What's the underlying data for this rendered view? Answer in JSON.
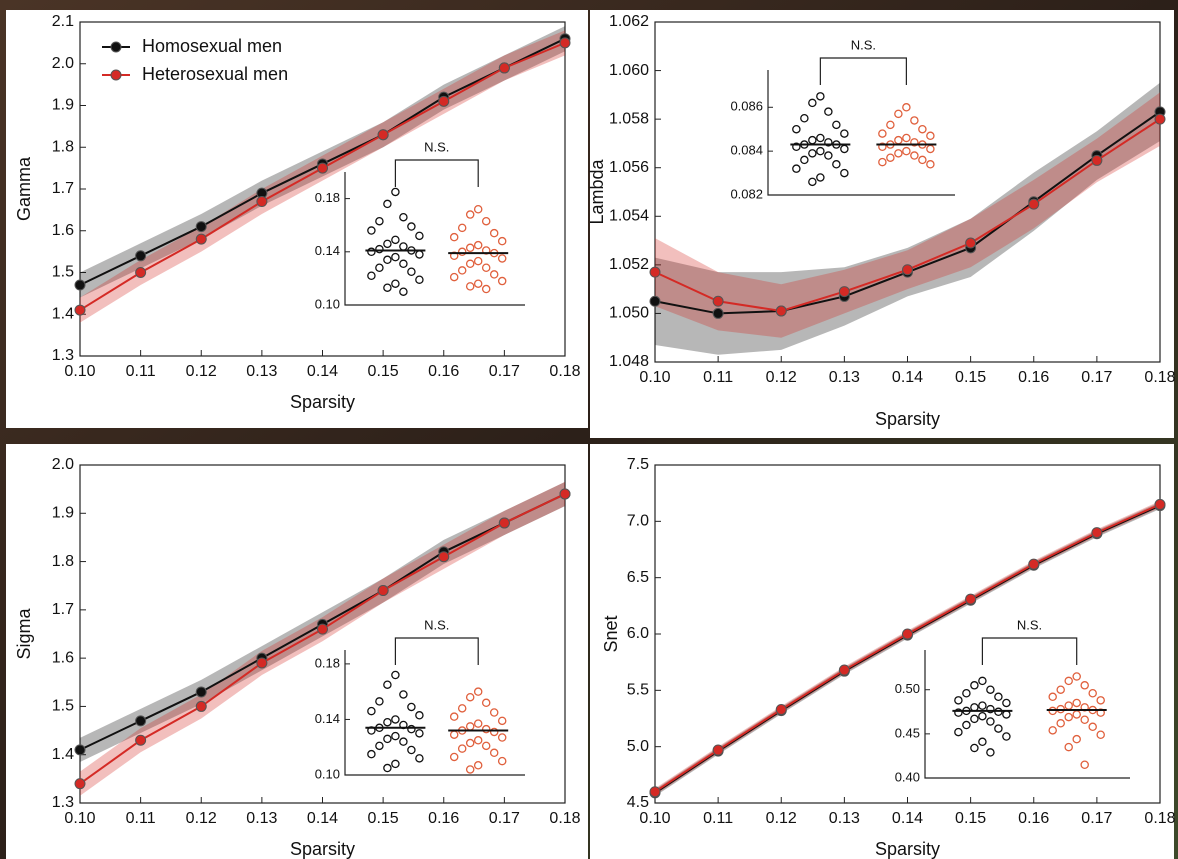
{
  "chart_data": [
    {
      "type": "line",
      "xlabel": "Sparsity",
      "ylabel": "Gamma",
      "legend": "upper left",
      "x": [
        0.1,
        0.11,
        0.12,
        0.13,
        0.14,
        0.15,
        0.16,
        0.17,
        0.18
      ],
      "xlim": [
        0.1,
        0.18
      ],
      "xticks": [
        {
          "value": 0.1,
          "label": "0.10"
        },
        {
          "value": 0.11,
          "label": "0.11"
        },
        {
          "value": 0.12,
          "label": "0.12"
        },
        {
          "value": 0.13,
          "label": "0.13"
        },
        {
          "value": 0.14,
          "label": "0.14"
        },
        {
          "value": 0.15,
          "label": "0.15"
        },
        {
          "value": 0.16,
          "label": "0.16"
        },
        {
          "value": 0.17,
          "label": "0.17"
        },
        {
          "value": 0.18,
          "label": "0.18"
        }
      ],
      "ylim": [
        1.3,
        2.1
      ],
      "yticks": [
        1.3,
        1.4,
        1.5,
        1.6,
        1.7,
        1.8,
        1.9,
        {
          "value": 2,
          "label": "2.0"
        },
        2.1
      ],
      "series": [
        {
          "name": "Homosexual men",
          "color": "#111111",
          "values": [
            1.47,
            1.54,
            1.61,
            1.69,
            1.76,
            1.83,
            1.92,
            1.99,
            2.06
          ],
          "error": [
            0.03,
            0.03,
            0.03,
            0.03,
            0.03,
            0.03,
            0.03,
            0.03,
            0.03
          ]
        },
        {
          "name": "Heterosexual men",
          "color": "#d42a25",
          "values": [
            1.41,
            1.5,
            1.58,
            1.67,
            1.75,
            1.83,
            1.91,
            1.99,
            2.05
          ],
          "error": [
            0.03,
            0.03,
            0.03,
            0.03,
            0.03,
            0.03,
            0.03,
            0.03,
            0.03
          ]
        }
      ],
      "inset": {
        "type": "strip",
        "annotation": "N.S.",
        "ylim": [
          0.1,
          0.2
        ],
        "yticks": [
          {
            "value": 0.1,
            "label": "0.10"
          },
          0.14,
          0.18
        ],
        "series": [
          {
            "color": "#111111",
            "mean": 0.141,
            "values": [
              0.185,
              0.176,
              0.166,
              0.163,
              0.159,
              0.156,
              0.152,
              0.149,
              0.146,
              0.144,
              0.142,
              0.141,
              0.14,
              0.138,
              0.136,
              0.134,
              0.131,
              0.128,
              0.125,
              0.122,
              0.119,
              0.116,
              0.113,
              0.11
            ]
          },
          {
            "color": "#e0603d",
            "mean": 0.139,
            "values": [
              0.172,
              0.168,
              0.163,
              0.158,
              0.154,
              0.151,
              0.148,
              0.145,
              0.143,
              0.141,
              0.14,
              0.139,
              0.137,
              0.135,
              0.133,
              0.131,
              0.128,
              0.126,
              0.123,
              0.121,
              0.118,
              0.116,
              0.114,
              0.112
            ]
          }
        ]
      }
    },
    {
      "type": "line",
      "xlabel": "Sparsity",
      "ylabel": "Lambda",
      "x": [
        0.1,
        0.11,
        0.12,
        0.13,
        0.14,
        0.15,
        0.16,
        0.17,
        0.18
      ],
      "xlim": [
        0.1,
        0.18
      ],
      "xticks": [
        {
          "value": 0.1,
          "label": "0.10"
        },
        {
          "value": 0.11,
          "label": "0.11"
        },
        {
          "value": 0.12,
          "label": "0.12"
        },
        {
          "value": 0.13,
          "label": "0.13"
        },
        {
          "value": 0.14,
          "label": "0.14"
        },
        {
          "value": 0.15,
          "label": "0.15"
        },
        {
          "value": 0.16,
          "label": "0.16"
        },
        {
          "value": 0.17,
          "label": "0.17"
        },
        {
          "value": 0.18,
          "label": "0.18"
        }
      ],
      "ylim": [
        1.048,
        1.062
      ],
      "yticks": [
        1.048,
        {
          "value": 1.05,
          "label": "1.050"
        },
        1.052,
        1.054,
        1.056,
        1.058,
        {
          "value": 1.06,
          "label": "1.060"
        },
        1.062
      ],
      "series": [
        {
          "color": "#111111",
          "values": [
            1.0505,
            1.05,
            1.0501,
            1.0507,
            1.0517,
            1.0527,
            1.0546,
            1.0565,
            1.0583
          ],
          "error": [
            0.0018,
            0.0017,
            0.0016,
            0.0012,
            0.001,
            0.0012,
            0.0012,
            0.001,
            0.0012
          ]
        },
        {
          "color": "#d42a25",
          "values": [
            1.0517,
            1.0505,
            1.0501,
            1.0509,
            1.0518,
            1.0529,
            1.0545,
            1.0563,
            1.058
          ],
          "error": [
            0.0014,
            0.0012,
            0.0011,
            0.0009,
            0.0008,
            0.001,
            0.001,
            0.0009,
            0.0011
          ]
        }
      ],
      "inset": {
        "type": "strip",
        "annotation": "N.S.",
        "ylim": [
          0.082,
          0.0877
        ],
        "yticks": [
          0.082,
          0.084,
          0.086
        ],
        "series": [
          {
            "color": "#111111",
            "mean": 0.0843,
            "values": [
              0.0865,
              0.0862,
              0.0858,
              0.0855,
              0.0852,
              0.085,
              0.0848,
              0.0846,
              0.0845,
              0.0844,
              0.0843,
              0.0843,
              0.0842,
              0.0841,
              0.084,
              0.0839,
              0.0838,
              0.0836,
              0.0834,
              0.0832,
              0.083,
              0.0828,
              0.0826
            ]
          },
          {
            "color": "#e0603d",
            "mean": 0.0843,
            "values": [
              0.086,
              0.0857,
              0.0854,
              0.0852,
              0.085,
              0.0848,
              0.0847,
              0.0846,
              0.0845,
              0.0844,
              0.0843,
              0.0843,
              0.0842,
              0.0841,
              0.084,
              0.0839,
              0.0838,
              0.0837,
              0.0836,
              0.0835,
              0.0834
            ]
          }
        ]
      }
    },
    {
      "type": "line",
      "xlabel": "Sparsity",
      "ylabel": "Sigma",
      "x": [
        0.1,
        0.11,
        0.12,
        0.13,
        0.14,
        0.15,
        0.16,
        0.17,
        0.18
      ],
      "xlim": [
        0.1,
        0.18
      ],
      "xticks": [
        {
          "value": 0.1,
          "label": "0.10"
        },
        {
          "value": 0.11,
          "label": "0.11"
        },
        {
          "value": 0.12,
          "label": "0.12"
        },
        {
          "value": 0.13,
          "label": "0.13"
        },
        {
          "value": 0.14,
          "label": "0.14"
        },
        {
          "value": 0.15,
          "label": "0.15"
        },
        {
          "value": 0.16,
          "label": "0.16"
        },
        {
          "value": 0.17,
          "label": "0.17"
        },
        {
          "value": 0.18,
          "label": "0.18"
        }
      ],
      "ylim": [
        1.3,
        2.0
      ],
      "yticks": [
        1.3,
        1.4,
        1.5,
        1.6,
        1.7,
        1.8,
        1.9,
        {
          "value": 2,
          "label": "2.0"
        }
      ],
      "series": [
        {
          "color": "#111111",
          "values": [
            1.41,
            1.47,
            1.53,
            1.6,
            1.67,
            1.74,
            1.82,
            1.88,
            1.94
          ],
          "error": [
            0.025,
            0.025,
            0.025,
            0.025,
            0.025,
            0.025,
            0.025,
            0.025,
            0.025
          ]
        },
        {
          "color": "#d42a25",
          "values": [
            1.34,
            1.43,
            1.5,
            1.59,
            1.66,
            1.74,
            1.81,
            1.88,
            1.94
          ],
          "error": [
            0.025,
            0.025,
            0.025,
            0.025,
            0.025,
            0.025,
            0.025,
            0.025,
            0.025
          ]
        }
      ],
      "inset": {
        "type": "strip",
        "annotation": "N.S.",
        "ylim": [
          0.1,
          0.19
        ],
        "yticks": [
          {
            "value": 0.1,
            "label": "0.10"
          },
          0.14,
          0.18
        ],
        "series": [
          {
            "color": "#111111",
            "mean": 0.134,
            "values": [
              0.172,
              0.165,
              0.158,
              0.153,
              0.149,
              0.146,
              0.143,
              0.14,
              0.138,
              0.136,
              0.134,
              0.133,
              0.132,
              0.13,
              0.128,
              0.126,
              0.124,
              0.121,
              0.118,
              0.115,
              0.112,
              0.108,
              0.105
            ]
          },
          {
            "color": "#e0603d",
            "mean": 0.132,
            "values": [
              0.16,
              0.156,
              0.152,
              0.148,
              0.145,
              0.142,
              0.139,
              0.137,
              0.135,
              0.133,
              0.132,
              0.131,
              0.129,
              0.127,
              0.125,
              0.123,
              0.121,
              0.119,
              0.116,
              0.113,
              0.11,
              0.107,
              0.104
            ]
          }
        ]
      }
    },
    {
      "type": "line",
      "xlabel": "Sparsity",
      "ylabel": "Snet",
      "x": [
        0.1,
        0.11,
        0.12,
        0.13,
        0.14,
        0.15,
        0.16,
        0.17,
        0.18
      ],
      "xlim": [
        0.1,
        0.18
      ],
      "xticks": [
        {
          "value": 0.1,
          "label": "0.10"
        },
        {
          "value": 0.11,
          "label": "0.11"
        },
        {
          "value": 0.12,
          "label": "0.12"
        },
        {
          "value": 0.13,
          "label": "0.13"
        },
        {
          "value": 0.14,
          "label": "0.14"
        },
        {
          "value": 0.15,
          "label": "0.15"
        },
        {
          "value": 0.16,
          "label": "0.16"
        },
        {
          "value": 0.17,
          "label": "0.17"
        },
        {
          "value": 0.18,
          "label": "0.18"
        }
      ],
      "ylim": [
        4.5,
        7.5
      ],
      "yticks": [
        4.5,
        {
          "value": 5,
          "label": "5.0"
        },
        5.5,
        {
          "value": 6,
          "label": "6.0"
        },
        6.5,
        {
          "value": 7,
          "label": "7.0"
        },
        7.5
      ],
      "series": [
        {
          "color": "#111111",
          "values": [
            4.59,
            4.96,
            5.32,
            5.67,
            5.99,
            6.3,
            6.61,
            6.89,
            7.14
          ],
          "error": [
            0.03,
            0.03,
            0.03,
            0.03,
            0.03,
            0.03,
            0.03,
            0.03,
            0.03
          ]
        },
        {
          "color": "#d42a25",
          "values": [
            4.6,
            4.97,
            5.33,
            5.68,
            6.0,
            6.31,
            6.62,
            6.9,
            7.15
          ],
          "error": [
            0.03,
            0.03,
            0.03,
            0.03,
            0.03,
            0.03,
            0.03,
            0.03,
            0.03
          ]
        }
      ],
      "inset": {
        "type": "strip",
        "annotation": "N.S.",
        "ylim": [
          0.4,
          0.545
        ],
        "yticks": [
          {
            "value": 0.4,
            "label": "0.40"
          },
          0.45,
          {
            "value": 0.5,
            "label": "0.50"
          }
        ],
        "series": [
          {
            "color": "#111111",
            "mean": 0.476,
            "values": [
              0.51,
              0.505,
              0.5,
              0.496,
              0.492,
              0.488,
              0.485,
              0.482,
              0.48,
              0.478,
              0.476,
              0.475,
              0.474,
              0.472,
              0.47,
              0.467,
              0.464,
              0.46,
              0.456,
              0.452,
              0.447,
              0.441,
              0.434,
              0.429
            ]
          },
          {
            "color": "#e0603d",
            "mean": 0.477,
            "values": [
              0.515,
              0.51,
              0.505,
              0.5,
              0.496,
              0.492,
              0.488,
              0.485,
              0.482,
              0.48,
              0.478,
              0.477,
              0.476,
              0.474,
              0.472,
              0.469,
              0.466,
              0.462,
              0.458,
              0.454,
              0.449,
              0.444,
              0.435,
              0.415
            ]
          }
        ]
      }
    }
  ]
}
